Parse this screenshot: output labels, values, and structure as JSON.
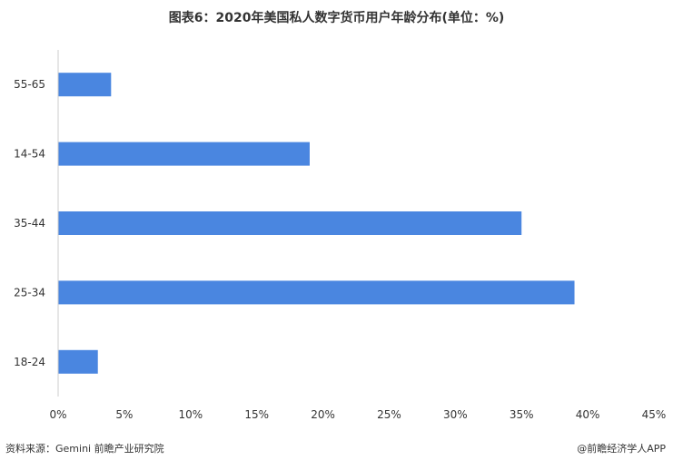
{
  "chart_data": {
    "type": "bar",
    "orientation": "horizontal",
    "title": "图表6：2020年美国私人数字货币用户年龄分布(单位：%)",
    "categories": [
      "55-65",
      "14-54",
      "35-44",
      "25-34",
      "18-24"
    ],
    "values": [
      4,
      19,
      35,
      39,
      3
    ],
    "xlim": [
      0,
      45
    ],
    "x_ticks": [
      "0%",
      "5%",
      "10%",
      "15%",
      "20%",
      "25%",
      "30%",
      "35%",
      "40%",
      "45%"
    ],
    "bar_color": "#4a86e0",
    "grid": false,
    "legend": "none"
  },
  "footer": {
    "source": "资料来源：Gemini 前瞻产业研究院",
    "brand": "@前瞻经济学人APP"
  }
}
